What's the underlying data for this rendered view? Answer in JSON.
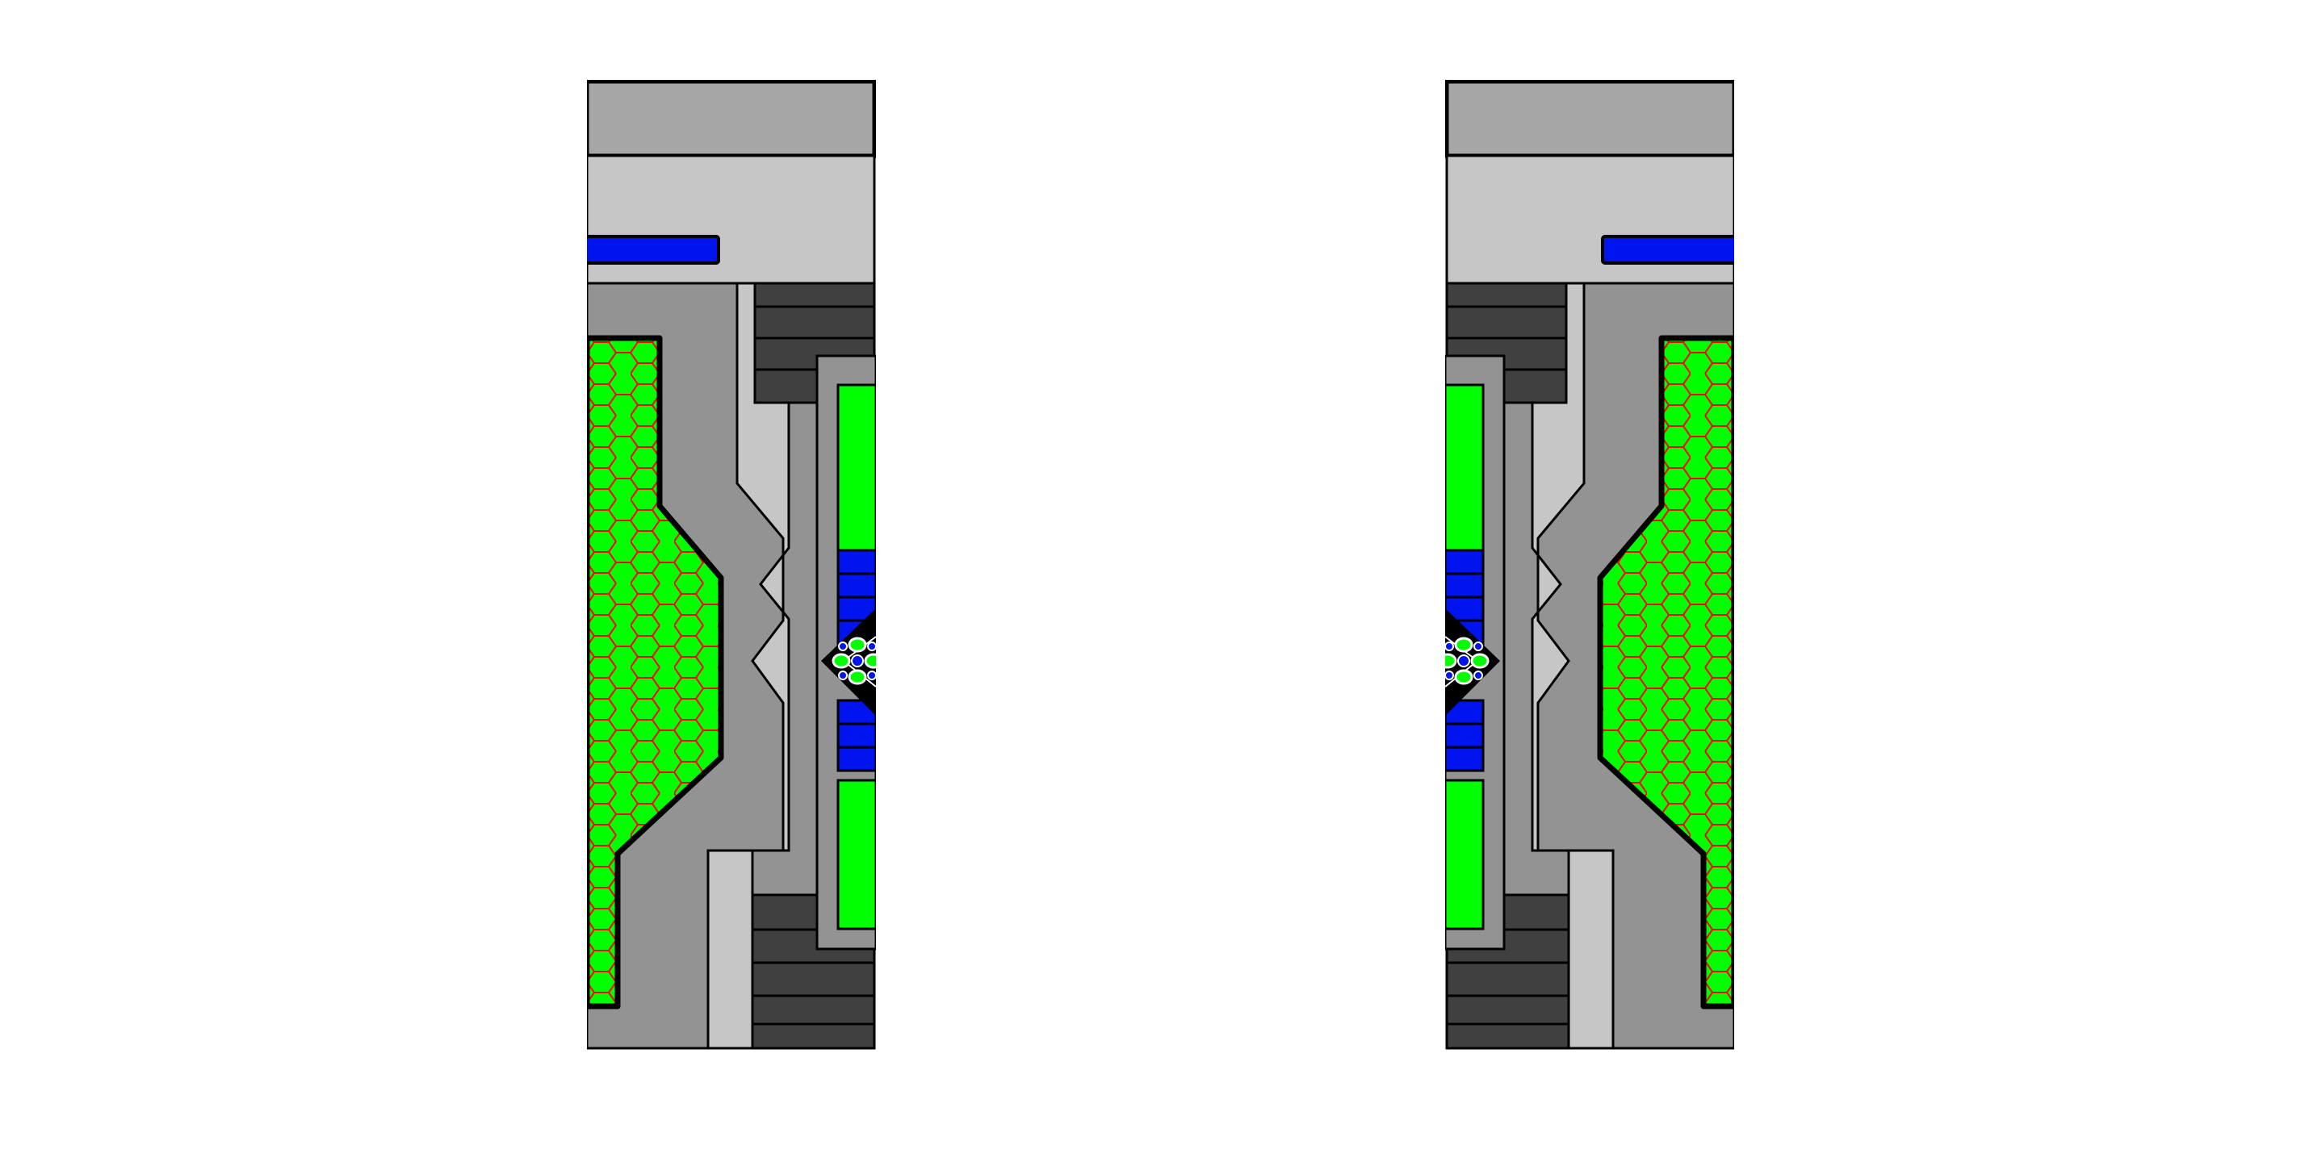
{
  "scene": {
    "description_tags": [
      "split-screen",
      "mirrored-sprites"
    ],
    "background": "#ffffff"
  },
  "colors": {
    "outline": "#000000",
    "frame_gray": "#a6a6a6",
    "panel_light": "#c6c6c6",
    "hull_gray": "#939393",
    "vent_dark": "#404040",
    "energy_green": "#00ff00",
    "hex_grid_red": "#ff0000",
    "core_blue": "#0014f0",
    "emblem_white": "#ffffff"
  },
  "sprites": [
    {
      "id": "left",
      "mirrored": false
    },
    {
      "id": "right",
      "mirrored": true
    }
  ],
  "icons": {
    "core_emblem": "quad-leaf-emblem-icon",
    "hex_panel": "hexagon-grid-icon",
    "vent": "vent-slats-icon"
  }
}
